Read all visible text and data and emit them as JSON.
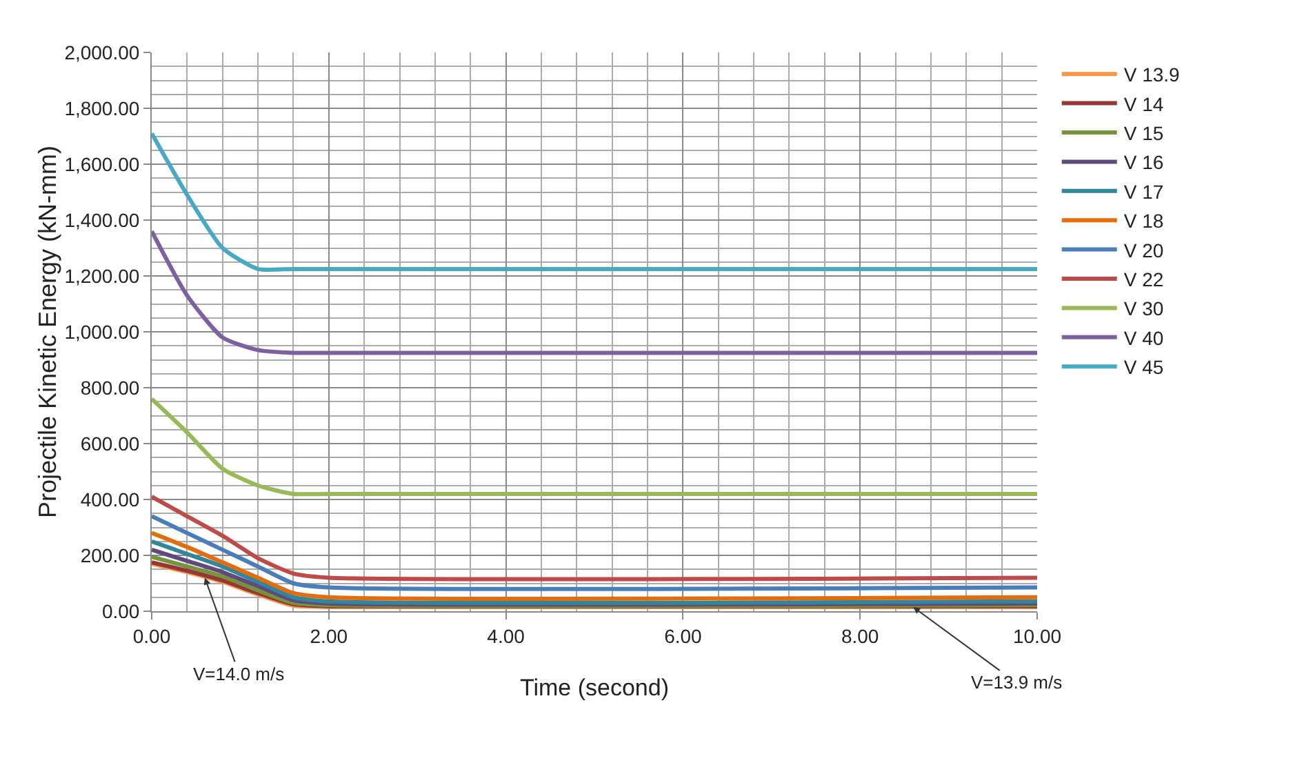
{
  "chart_data": {
    "type": "line",
    "xlabel": "Time (second)",
    "ylabel": "Projectile Kinetic Energy (kN-mm)",
    "x": [
      0,
      0.4,
      0.8,
      1.2,
      1.6,
      2.0,
      10
    ],
    "series": [
      {
        "name": "V 13.9",
        "color": "#f79646",
        "values": [
          170,
          140,
          105,
          60,
          20,
          15,
          15
        ]
      },
      {
        "name": "V 14",
        "color": "#953735",
        "values": [
          175,
          145,
          110,
          65,
          25,
          18,
          18
        ]
      },
      {
        "name": "V 15",
        "color": "#77933c",
        "values": [
          195,
          160,
          125,
          75,
          30,
          22,
          22
        ]
      },
      {
        "name": "V 16",
        "color": "#604a7b",
        "values": [
          220,
          180,
          140,
          90,
          40,
          28,
          28
        ]
      },
      {
        "name": "V 17",
        "color": "#31859c",
        "values": [
          250,
          205,
          160,
          105,
          50,
          35,
          35
        ]
      },
      {
        "name": "V 18",
        "color": "#e46c0a",
        "values": [
          280,
          230,
          175,
          120,
          65,
          50,
          50
        ]
      },
      {
        "name": "V 20",
        "color": "#4a7ebb",
        "values": [
          340,
          280,
          220,
          160,
          100,
          85,
          85
        ]
      },
      {
        "name": "V 22",
        "color": "#be4b48",
        "values": [
          410,
          340,
          270,
          190,
          135,
          120,
          120
        ]
      },
      {
        "name": "V 30",
        "color": "#98b954",
        "values": [
          760,
          640,
          510,
          450,
          420,
          420,
          420
        ]
      },
      {
        "name": "V 40",
        "color": "#7d60a0",
        "values": [
          1360,
          1130,
          980,
          935,
          925,
          925,
          925
        ]
      },
      {
        "name": "V 45",
        "color": "#46aac5",
        "values": [
          1710,
          1490,
          1300,
          1225,
          1225,
          1225,
          1225
        ]
      }
    ],
    "xlim": [
      0,
      10
    ],
    "xticks": [
      {
        "value": 0,
        "label": "0.00"
      },
      {
        "value": 2,
        "label": "2.00"
      },
      {
        "value": 4,
        "label": "4.00"
      },
      {
        "value": 6,
        "label": "6.00"
      },
      {
        "value": 8,
        "label": "8.00"
      },
      {
        "value": 10,
        "label": "10.00"
      }
    ],
    "ylim": [
      0,
      2000
    ],
    "yticks": [
      {
        "value": 0,
        "label": "0.00"
      },
      {
        "value": 200,
        "label": "200.00"
      },
      {
        "value": 400,
        "label": "400.00"
      },
      {
        "value": 600,
        "label": "600.00"
      },
      {
        "value": 800,
        "label": "800.00"
      },
      {
        "value": 1000,
        "label": "1,000.00"
      },
      {
        "value": 1200,
        "label": "1,200.00"
      },
      {
        "value": 1400,
        "label": "1,400.00"
      },
      {
        "value": 1600,
        "label": "1,600.00"
      },
      {
        "value": 1800,
        "label": "1,800.00"
      },
      {
        "value": 2000,
        "label": "2,000.00"
      }
    ],
    "annotations": [
      {
        "text": "V=14.0 m/s",
        "x": 0.6,
        "y": 120
      },
      {
        "text": "V=13.9 m/s",
        "x": 8.6,
        "y": 15
      }
    ],
    "grid": true,
    "legend": "right",
    "marker": "none",
    "line_style": "solid"
  }
}
